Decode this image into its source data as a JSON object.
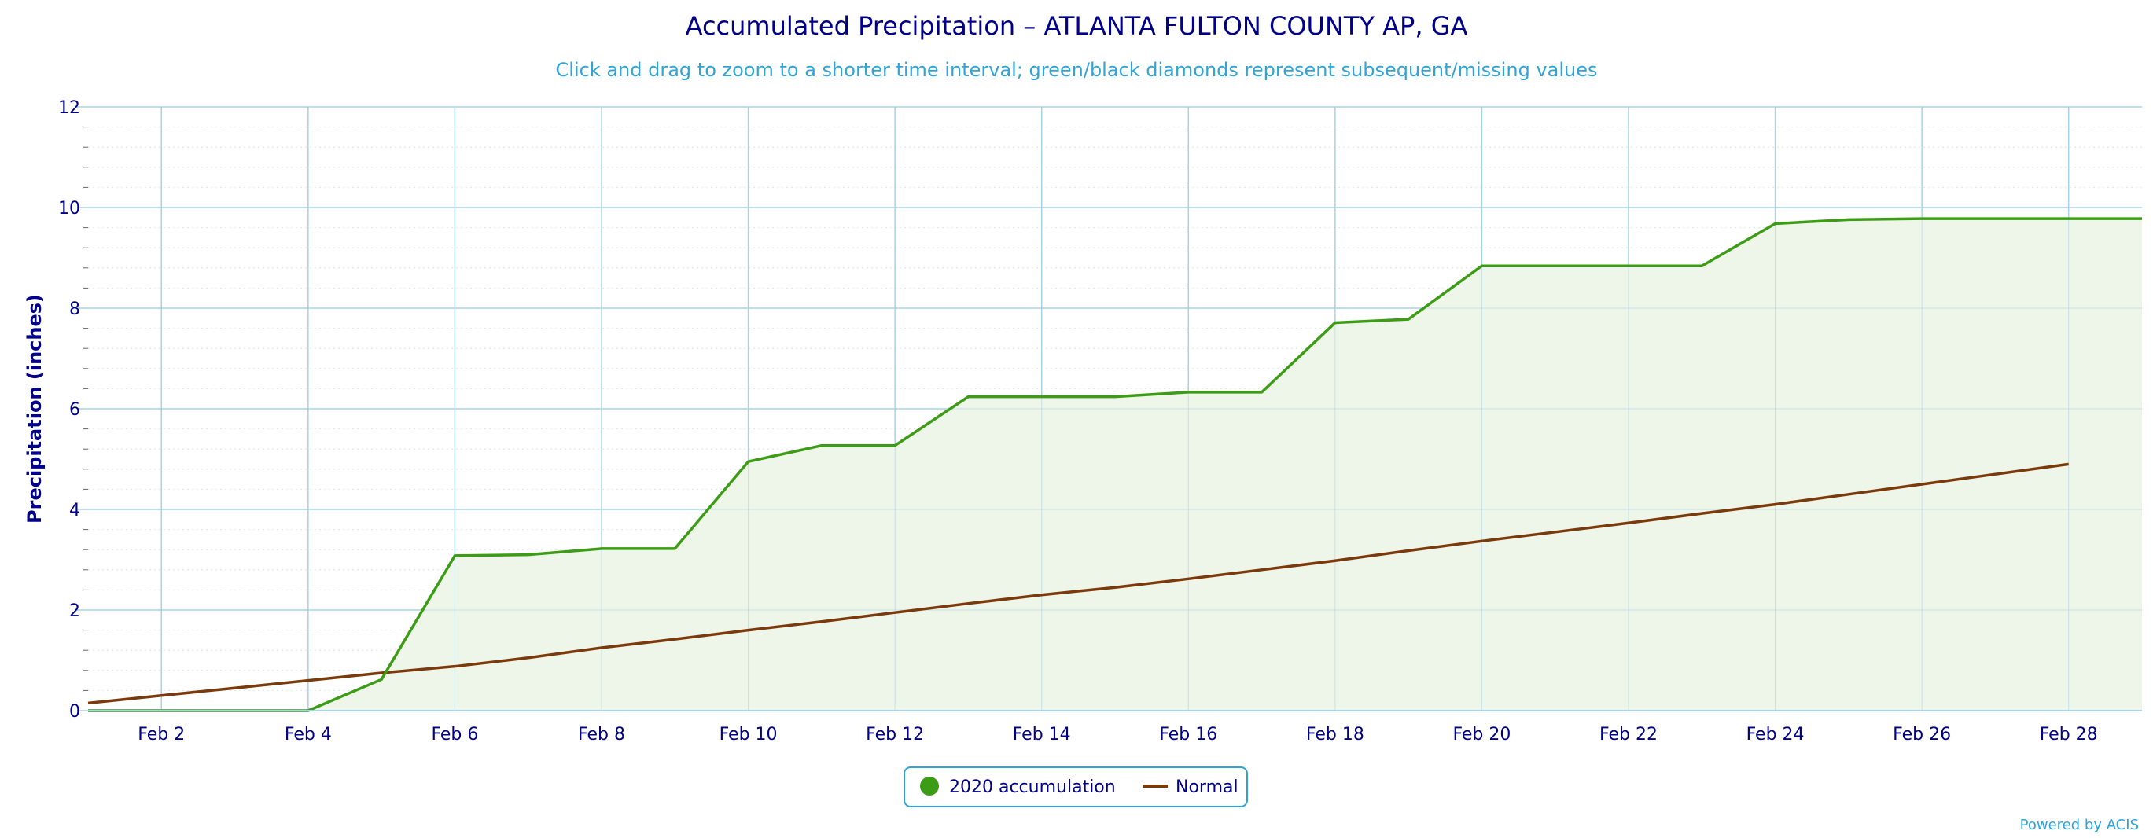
{
  "colors": {
    "title": "#00008b",
    "subtitle": "#2fa4d8",
    "grid": "#a9d3e6",
    "accumulation": "#3c9c16",
    "accumulation_fill": "#eef5e9",
    "normal": "#7a3a0c",
    "credit": "#2fa4d8"
  },
  "legend": {
    "accumulation_label": "2020 accumulation",
    "normal_label": "Normal"
  },
  "credit": "Powered by ACIS",
  "chart_data": {
    "type": "line",
    "title": "Accumulated Precipitation – ATLANTA FULTON COUNTY AP, GA",
    "subtitle": "Click and drag to zoom to a shorter time interval; green/black diamonds represent subsequent/missing values",
    "xlabel": "",
    "ylabel": "Precipitation (inches)",
    "xlim": [
      1,
      29
    ],
    "ylim": [
      0,
      12
    ],
    "yticks": [
      0,
      2,
      4,
      6,
      8,
      10,
      12
    ],
    "xticks": [
      {
        "day": 2,
        "label": "Feb 2"
      },
      {
        "day": 4,
        "label": "Feb 4"
      },
      {
        "day": 6,
        "label": "Feb 6"
      },
      {
        "day": 8,
        "label": "Feb 8"
      },
      {
        "day": 10,
        "label": "Feb 10"
      },
      {
        "day": 12,
        "label": "Feb 12"
      },
      {
        "day": 14,
        "label": "Feb 14"
      },
      {
        "day": 16,
        "label": "Feb 16"
      },
      {
        "day": 18,
        "label": "Feb 18"
      },
      {
        "day": 20,
        "label": "Feb 20"
      },
      {
        "day": 22,
        "label": "Feb 22"
      },
      {
        "day": 24,
        "label": "Feb 24"
      },
      {
        "day": 26,
        "label": "Feb 26"
      },
      {
        "day": 28,
        "label": "Feb 28"
      }
    ],
    "grid": true,
    "legend_position": "bottom-center",
    "series": [
      {
        "name": "2020 accumulation",
        "x": [
          1,
          2,
          3,
          4,
          5,
          6,
          7,
          8,
          9,
          10,
          11,
          12,
          13,
          14,
          15,
          16,
          17,
          18,
          19,
          20,
          21,
          22,
          23,
          24,
          25,
          26,
          27,
          28,
          29
        ],
        "values": [
          0,
          0,
          0,
          0,
          0.62,
          3.08,
          3.1,
          3.22,
          3.22,
          4.95,
          5.27,
          5.27,
          6.24,
          6.24,
          6.24,
          6.33,
          6.33,
          7.71,
          7.78,
          8.84,
          8.84,
          8.84,
          8.84,
          9.68,
          9.76,
          9.78,
          9.78,
          9.78,
          9.78
        ]
      },
      {
        "name": "Normal",
        "x": [
          1,
          2,
          3,
          4,
          5,
          6,
          7,
          8,
          9,
          10,
          11,
          12,
          13,
          14,
          15,
          16,
          17,
          18,
          19,
          20,
          21,
          22,
          23,
          24,
          25,
          26,
          27,
          28
        ],
        "values": [
          0.15,
          0.3,
          0.45,
          0.6,
          0.75,
          0.88,
          1.05,
          1.25,
          1.42,
          1.6,
          1.77,
          1.95,
          2.13,
          2.3,
          2.45,
          2.62,
          2.8,
          2.98,
          3.18,
          3.37,
          3.55,
          3.73,
          3.92,
          4.1,
          4.3,
          4.5,
          4.7,
          4.9
        ]
      }
    ]
  }
}
